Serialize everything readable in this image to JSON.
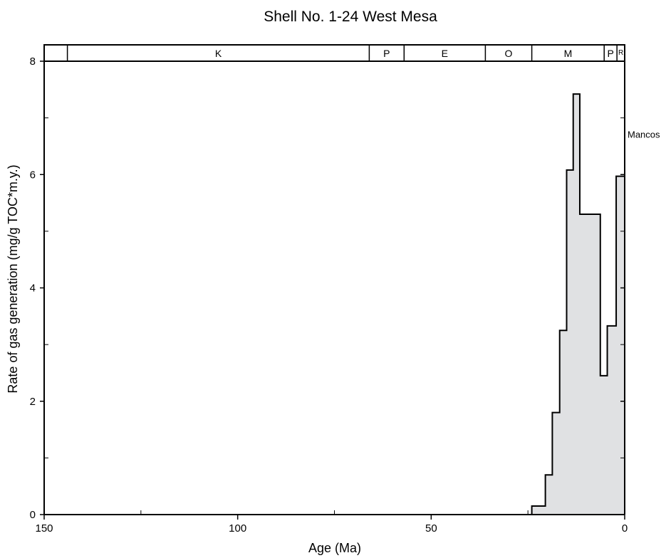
{
  "chart_data": {
    "type": "area",
    "title": "Shell No. 1-24 West Mesa",
    "xlabel": "Age (Ma)",
    "ylabel": "Rate of gas generation (mg/g TOC*m.y.)",
    "xlim": [
      150,
      0
    ],
    "ylim": [
      0,
      8
    ],
    "x_ticks": [
      150,
      100,
      50,
      0
    ],
    "y_ticks": [
      0,
      2,
      4,
      6,
      8
    ],
    "x_minor_ticks": [
      125,
      75,
      25
    ],
    "y_minor_ticks": [
      1,
      3,
      5,
      7
    ],
    "grid": false,
    "fill_color": "#e0e1e3",
    "line_color": "#000000",
    "series": [
      {
        "name": "Mancos",
        "x": [
          24,
          24,
          20.5,
          20.5,
          18.7,
          18.7,
          16.8,
          16.8,
          15,
          15,
          13.3,
          13.3,
          11.6,
          11.6,
          9.8,
          9.8,
          6.3,
          6.3,
          4.5,
          4.5,
          2.2,
          2.2,
          0
        ],
        "values": [
          0,
          0.15,
          0.15,
          0.7,
          0.7,
          1.8,
          1.8,
          3.25,
          3.25,
          6.08,
          6.08,
          7.42,
          7.42,
          5.3,
          5.3,
          5.3,
          5.3,
          2.45,
          2.45,
          3.33,
          3.33,
          5.97,
          5.97
        ]
      }
    ],
    "annotations": [
      {
        "text": "Mancos",
        "x": 0,
        "y": 6.6
      }
    ],
    "period_bar": [
      {
        "label": "",
        "start": 150,
        "end": 144
      },
      {
        "label": "K",
        "start": 144,
        "end": 66
      },
      {
        "label": "P",
        "start": 66,
        "end": 57
      },
      {
        "label": "E",
        "start": 57,
        "end": 36
      },
      {
        "label": "O",
        "start": 36,
        "end": 24
      },
      {
        "label": "M",
        "start": 24,
        "end": 5.3
      },
      {
        "label": "P",
        "start": 5.3,
        "end": 2
      },
      {
        "label": "R",
        "start": 2,
        "end": 0
      }
    ]
  }
}
